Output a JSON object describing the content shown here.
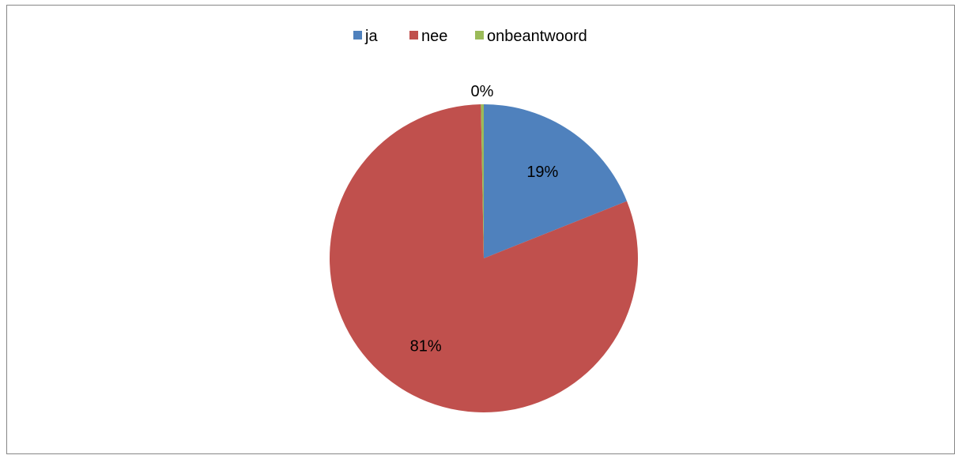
{
  "chart_data": {
    "type": "pie",
    "categories": [
      "ja",
      "nee",
      "onbeantwoord"
    ],
    "values": [
      19,
      81,
      0.3
    ],
    "data_labels": [
      "19%",
      "81%",
      "0%"
    ],
    "colors": [
      "#4F81BD",
      "#C0504D",
      "#9BBB59"
    ],
    "legend_position": "top",
    "title": ""
  }
}
